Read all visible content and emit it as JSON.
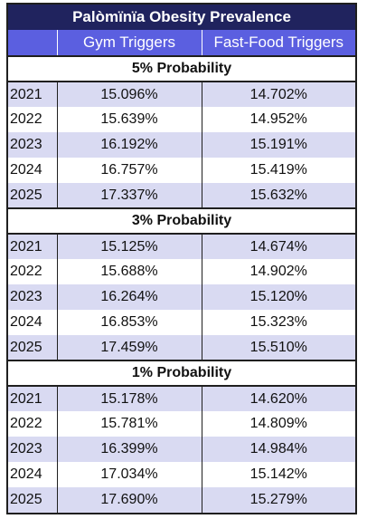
{
  "table": {
    "title": "Palòmïnïa Obesity Prevalence",
    "headers": [
      "",
      "Gym Triggers",
      "Fast-Food Triggers"
    ],
    "sections": [
      {
        "label": "5% Probability",
        "rows": [
          {
            "year": "2021",
            "gym": "15.096%",
            "fast": "14.702%"
          },
          {
            "year": "2022",
            "gym": "15.639%",
            "fast": "14.952%"
          },
          {
            "year": "2023",
            "gym": "16.192%",
            "fast": "15.191%"
          },
          {
            "year": "2024",
            "gym": "16.757%",
            "fast": "15.419%"
          },
          {
            "year": "2025",
            "gym": "17.337%",
            "fast": "15.632%"
          }
        ]
      },
      {
        "label": "3% Probability",
        "rows": [
          {
            "year": "2021",
            "gym": "15.125%",
            "fast": "14.674%"
          },
          {
            "year": "2022",
            "gym": "15.688%",
            "fast": "14.902%"
          },
          {
            "year": "2023",
            "gym": "16.264%",
            "fast": "15.120%"
          },
          {
            "year": "2024",
            "gym": "16.853%",
            "fast": "15.323%"
          },
          {
            "year": "2025",
            "gym": "17.459%",
            "fast": "15.510%"
          }
        ]
      },
      {
        "label": "1% Probability",
        "rows": [
          {
            "year": "2021",
            "gym": "15.178%",
            "fast": "14.620%"
          },
          {
            "year": "2022",
            "gym": "15.781%",
            "fast": "14.809%"
          },
          {
            "year": "2023",
            "gym": "16.399%",
            "fast": "14.984%"
          },
          {
            "year": "2024",
            "gym": "17.034%",
            "fast": "15.142%"
          },
          {
            "year": "2025",
            "gym": "17.690%",
            "fast": "15.279%"
          }
        ]
      }
    ]
  },
  "colors": {
    "title_bg": "#20235e",
    "header_bg": "#5b5fe0",
    "band_bg": "#d9daf2"
  }
}
